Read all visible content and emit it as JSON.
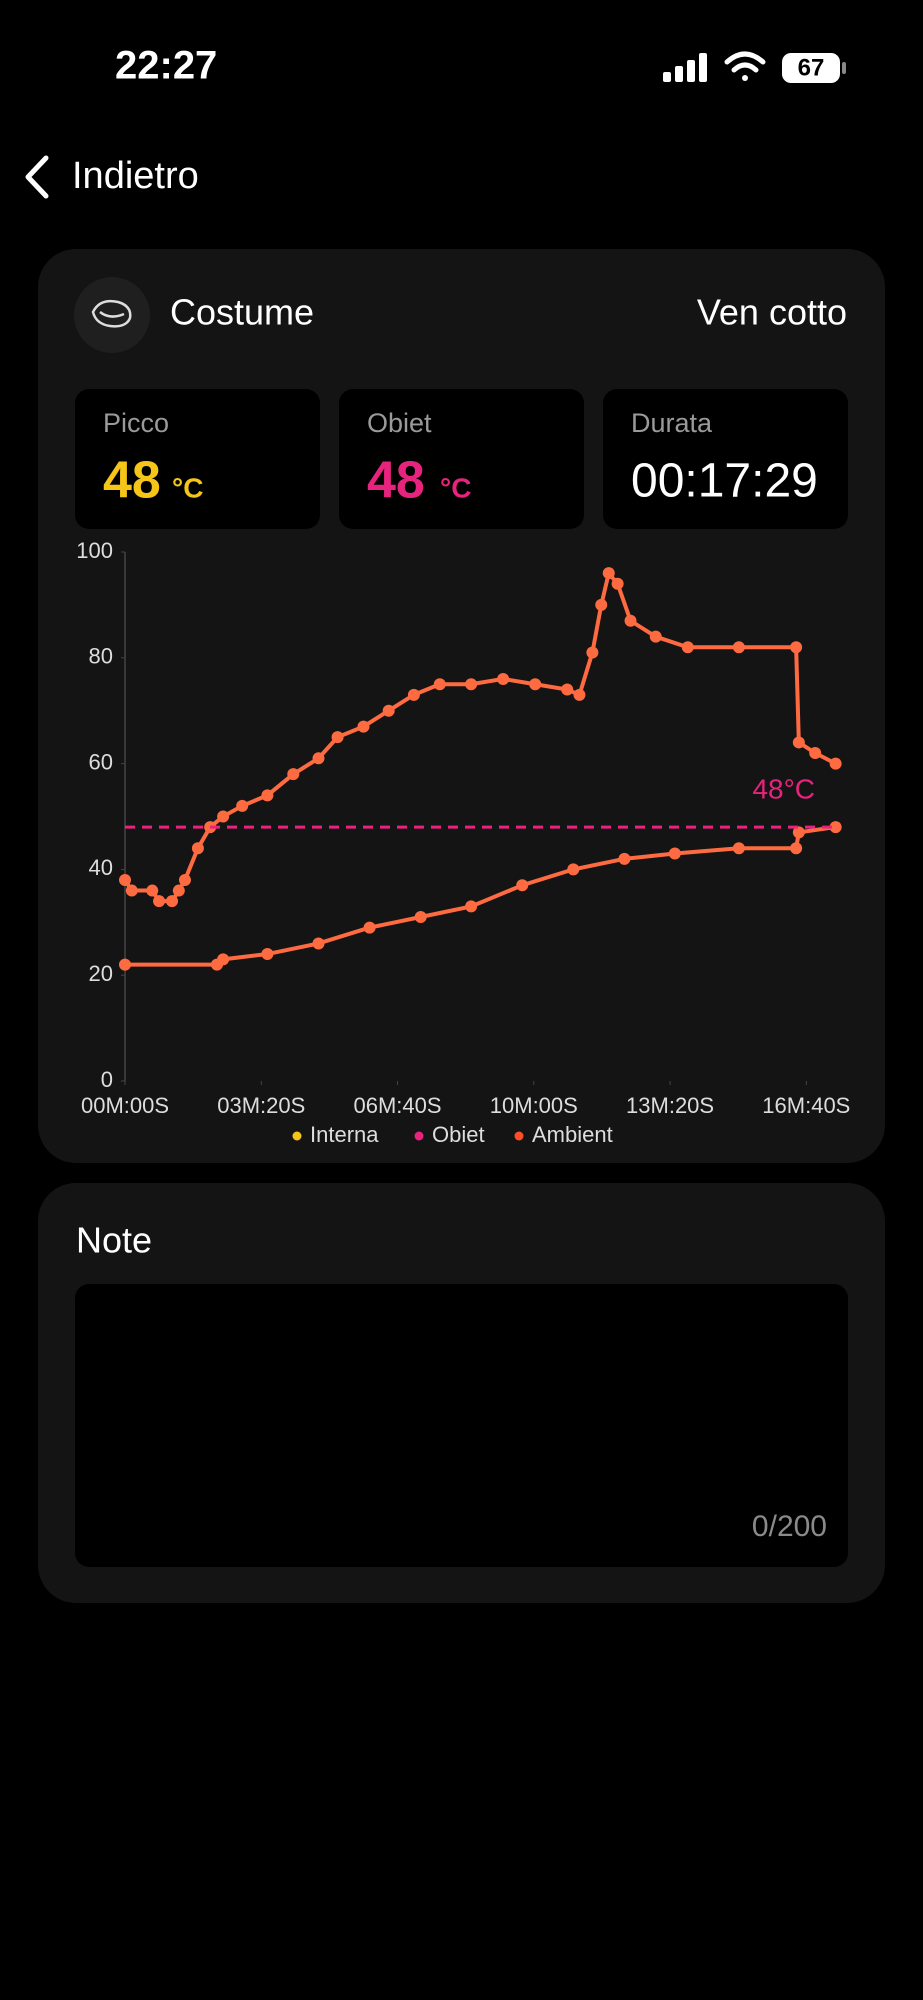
{
  "status_bar": {
    "time": "22:27",
    "battery": "67"
  },
  "nav": {
    "back": "Indietro"
  },
  "card": {
    "title": "Costume",
    "state": "Ven cotto"
  },
  "stats": [
    {
      "label": "Picco",
      "value": "48",
      "unit": "°C"
    },
    {
      "label": "Obiet",
      "value": "48",
      "unit": "°C"
    },
    {
      "label": "Durata",
      "value": "00:17:29"
    }
  ],
  "chart_data": {
    "type": "line",
    "xlim": [
      0,
      1045
    ],
    "ylim": [
      0,
      100
    ],
    "xticks": [
      {
        "value": 0,
        "label": "00M:00S"
      },
      {
        "value": 200,
        "label": "03M:20S"
      },
      {
        "value": 400,
        "label": "06M:40S"
      },
      {
        "value": 600,
        "label": "10M:00S"
      },
      {
        "value": 800,
        "label": "13M:20S"
      },
      {
        "value": 1000,
        "label": "16M:40S"
      }
    ],
    "yticks": [
      0,
      20,
      40,
      60,
      80,
      100
    ],
    "grid": false,
    "series": [
      {
        "name": "Interna",
        "color": "#f5c518",
        "line_color": "#ff6b40",
        "x": [
          0,
          135,
          144,
          209,
          284,
          359,
          434,
          508,
          583,
          658,
          733,
          807,
          901,
          985,
          989,
          1043
        ],
        "values": [
          22,
          22,
          23,
          24,
          26,
          29,
          31,
          33,
          37,
          40,
          42,
          43,
          44,
          44,
          47,
          48
        ]
      },
      {
        "name": "Ambient",
        "color": "#ff4d2a",
        "line_color": "#ff6b40",
        "x": [
          0,
          10,
          40,
          50,
          69,
          79,
          88,
          107,
          125,
          144,
          172,
          209,
          247,
          284,
          312,
          350,
          387,
          424,
          462,
          508,
          555,
          602,
          649,
          667,
          686,
          699,
          710,
          723,
          742,
          779,
          826,
          901,
          985,
          989,
          1013,
          1043
        ],
        "values": [
          38,
          36,
          36,
          34,
          34,
          36,
          38,
          44,
          48,
          50,
          52,
          54,
          58,
          61,
          65,
          67,
          70,
          73,
          75,
          75,
          76,
          75,
          74,
          73,
          81,
          90,
          96,
          94,
          87,
          84,
          82,
          82,
          82,
          64,
          62,
          60
        ]
      }
    ],
    "target": {
      "name": "Obiet",
      "color": "#e8237e",
      "value": 48,
      "label": "48°C"
    }
  },
  "note": {
    "title": "Note",
    "counter": "0/200"
  }
}
